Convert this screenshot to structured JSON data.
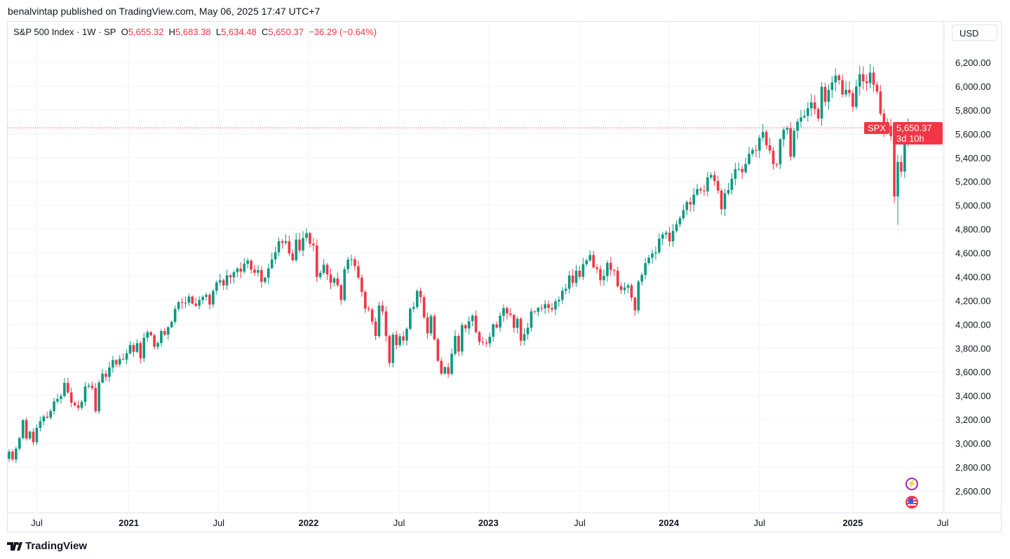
{
  "header": {
    "published": "benalvintap published on TradingView.com, May 06, 2025 17:47 UTC+7"
  },
  "legend": {
    "symbol": "S&P 500 Index · 1W · SP",
    "o_label": "O",
    "o": "5,655.32",
    "h_label": "H",
    "h": "5,683.38",
    "l_label": "L",
    "l": "5,634.48",
    "c_label": "C",
    "c": "5,650.37",
    "change": "−36.29 (−0.64%)"
  },
  "currency_button": "USD",
  "price_tag": {
    "symbol": "SPX",
    "price": "5,650.37",
    "countdown": "3d 10h"
  },
  "footer": {
    "brand": "TradingView"
  },
  "icons": {
    "event": "lightning-icon",
    "country": "us-flag-icon"
  },
  "colors": {
    "up": "#089981",
    "down": "#F23645",
    "grid": "#f0f3fa",
    "last_price_line": "#F23645"
  },
  "chart_data": {
    "type": "candlestick",
    "interval": "1W",
    "ylim": [
      2500,
      6300
    ],
    "y_ticks": [
      "2,600.00",
      "2,800.00",
      "3,000.00",
      "3,200.00",
      "3,400.00",
      "3,600.00",
      "3,800.00",
      "4,000.00",
      "4,200.00",
      "4,400.00",
      "4,600.00",
      "4,800.00",
      "5,000.00",
      "5,200.00",
      "5,400.00",
      "5,600.00",
      "5,800.00",
      "6,000.00",
      "6,200.00"
    ],
    "y_tick_values": [
      2600,
      2800,
      3000,
      3200,
      3400,
      3600,
      3800,
      4000,
      4200,
      4400,
      4600,
      4800,
      5000,
      5200,
      5400,
      5600,
      5800,
      6000,
      6200
    ],
    "x_ticks": [
      {
        "label": "Jul",
        "week": 8,
        "bold": false
      },
      {
        "label": "2021",
        "week": 34.6,
        "bold": true
      },
      {
        "label": "Jul",
        "week": 60.6,
        "bold": false
      },
      {
        "label": "2022",
        "week": 86.6,
        "bold": true
      },
      {
        "label": "Jul",
        "week": 112.8,
        "bold": false
      },
      {
        "label": "2023",
        "week": 138.6,
        "bold": true
      },
      {
        "label": "Jul",
        "week": 165,
        "bold": false
      },
      {
        "label": "2024",
        "week": 190.8,
        "bold": true
      },
      {
        "label": "Jul",
        "week": 217,
        "bold": false
      },
      {
        "label": "2025",
        "week": 244,
        "bold": true
      },
      {
        "label": "Jul",
        "week": 270,
        "bold": false
      }
    ],
    "first_week": "2020-05-04",
    "first_open": 2870,
    "closes": [
      2930,
      2864,
      2955,
      3044,
      3194,
      3041,
      3098,
      3009,
      3130,
      3185,
      3225,
      3216,
      3271,
      3351,
      3373,
      3397,
      3508,
      3427,
      3341,
      3319,
      3298,
      3348,
      3477,
      3484,
      3465,
      3270,
      3510,
      3585,
      3558,
      3638,
      3699,
      3663,
      3709,
      3703,
      3756,
      3825,
      3768,
      3841,
      3714,
      3887,
      3934,
      3907,
      3811,
      3842,
      3943,
      3913,
      3975,
      4020,
      4129,
      4185,
      4180,
      4181,
      4233,
      4174,
      4156,
      4204,
      4230,
      4247,
      4166,
      4281,
      4352,
      4370,
      4327,
      4412,
      4395,
      4437,
      4468,
      4442,
      4509,
      4535,
      4459,
      4433,
      4455,
      4357,
      4391,
      4471,
      4545,
      4605,
      4697,
      4683,
      4698,
      4595,
      4538,
      4712,
      4620,
      4725,
      4766,
      4677,
      4663,
      4398,
      4432,
      4500,
      4419,
      4349,
      4385,
      4329,
      4204,
      4463,
      4543,
      4546,
      4488,
      4393,
      4272,
      4132,
      4123,
      4023,
      3901,
      4158,
      4108,
      3901,
      3675,
      3912,
      3825,
      3899,
      3863,
      3962,
      4130,
      4145,
      4280,
      4228,
      4058,
      3924,
      4068,
      3873,
      3693,
      3586,
      3640,
      3583,
      3752,
      3901,
      3771,
      3993,
      3965,
      4026,
      4072,
      3934,
      3852,
      3845,
      3840,
      3895,
      3999,
      3973,
      4071,
      4136,
      4090,
      4079,
      3970,
      4046,
      3862,
      3917,
      3971,
      4109,
      4105,
      4138,
      4133,
      4169,
      4136,
      4124,
      4192,
      4205,
      4282,
      4299,
      4410,
      4348,
      4450,
      4399,
      4505,
      4536,
      4582,
      4478,
      4464,
      4370,
      4406,
      4516,
      4457,
      4450,
      4320,
      4288,
      4308,
      4327,
      4224,
      4117,
      4358,
      4415,
      4514,
      4559,
      4595,
      4604,
      4719,
      4755,
      4770,
      4697,
      4784,
      4840,
      4891,
      4959,
      5027,
      5006,
      5089,
      5137,
      5124,
      5117,
      5234,
      5254,
      5204,
      5123,
      4967,
      5100,
      5128,
      5223,
      5303,
      5305,
      5278,
      5347,
      5432,
      5465,
      5460,
      5567,
      5615,
      5505,
      5459,
      5346,
      5344,
      5554,
      5634,
      5648,
      5408,
      5626,
      5703,
      5738,
      5751,
      5815,
      5864,
      5808,
      5729,
      5995,
      5870,
      5969,
      6032,
      6090,
      6051,
      5931,
      5970,
      5942,
      5827,
      5997,
      6101,
      6041,
      6026,
      6115,
      6013,
      5955,
      5770,
      5639,
      5668,
      5581,
      5074,
      5363,
      5283,
      5525,
      5686.67,
      5650.37
    ],
    "last_candle": {
      "open": 5655.32,
      "high": 5683.38,
      "low": 5634.48,
      "close": 5650.37
    },
    "last_price": 5650.37
  }
}
